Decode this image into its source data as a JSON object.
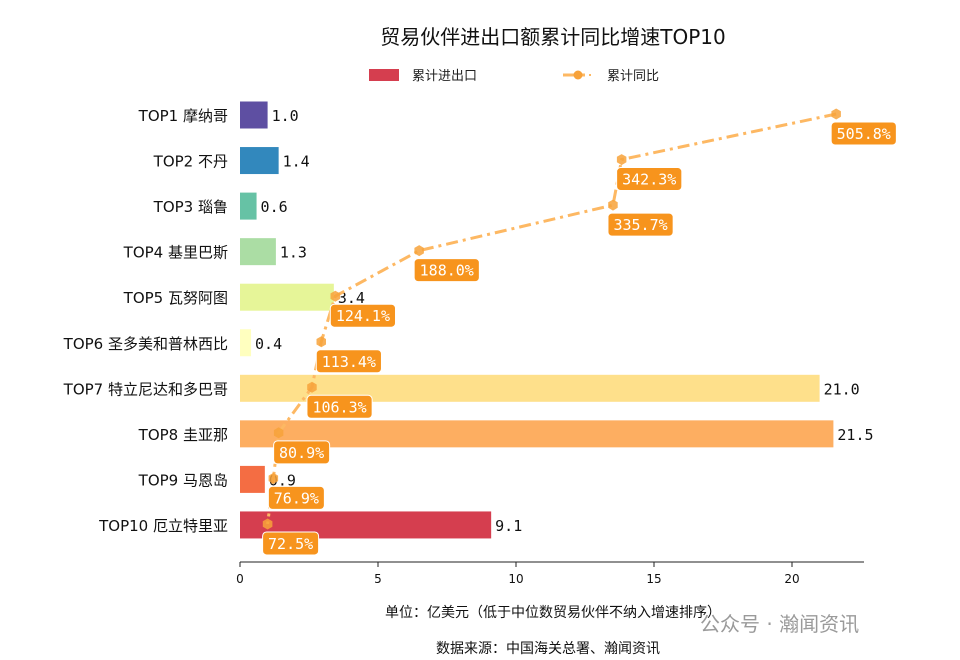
{
  "chart_data": {
    "type": "bar",
    "orientation": "horizontal",
    "title": "贸易伙伴进出口额累计同比增速TOP10",
    "categories": [
      "TOP1 摩纳哥",
      "TOP2 不丹",
      "TOP3 瑙鲁",
      "TOP4 基里巴斯",
      "TOP5 瓦努阿图",
      "TOP6 圣多美和普林西比",
      "TOP7 特立尼达和多巴哥",
      "TOP8 圭亚那",
      "TOP9 马恩岛",
      "TOP10 厄立特里亚"
    ],
    "series": [
      {
        "name": "累计进出口",
        "type": "bar",
        "values": [
          1.0,
          1.4,
          0.6,
          1.3,
          3.4,
          0.4,
          21.0,
          21.5,
          0.9,
          9.1
        ],
        "labels": [
          "1.0",
          "1.4",
          "0.6",
          "1.3",
          "3.4",
          "0.4",
          "21.0",
          "21.5",
          "0.9",
          "9.1"
        ]
      },
      {
        "name": "累计同比",
        "type": "line",
        "values": [
          505.8,
          342.3,
          335.7,
          188.0,
          124.1,
          113.4,
          106.3,
          80.9,
          76.9,
          72.5
        ],
        "labels": [
          "505.8%",
          "342.3%",
          "335.7%",
          "188.0%",
          "124.1%",
          "113.4%",
          "106.3%",
          "80.9%",
          "76.9%",
          "72.5%"
        ],
        "color": "#fdb863",
        "label_bg": "#f7941d"
      }
    ],
    "bar_colors": [
      "#5e4fa2",
      "#3288bd",
      "#66c2a5",
      "#abdda4",
      "#e6f598",
      "#ffffbf",
      "#fee08b",
      "#fdae61",
      "#f46d43",
      "#d53e4f"
    ],
    "xlim": [
      0,
      22.6
    ],
    "xticks": [
      "0",
      "5",
      "10",
      "15",
      "20"
    ],
    "xlabel": "单位：亿美元（低于中位数贸易伙伴不纳入增速排序）",
    "source": "数据来源：中国海关总署、瀚闻资讯",
    "legend_position": "top-center",
    "grid": false
  },
  "watermark": "公众号 · 瀚闻资讯"
}
